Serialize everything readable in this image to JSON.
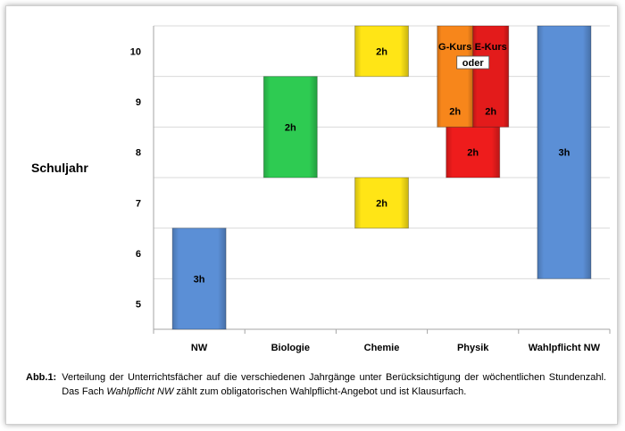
{
  "chart_data": {
    "type": "bar",
    "ylabel": "Schuljahr",
    "yticks": [
      5,
      6,
      7,
      8,
      9,
      10
    ],
    "ylim": [
      4.5,
      10.5
    ],
    "categories": [
      "NW",
      "Biologie",
      "Chemie",
      "Physik",
      "Wahlpflicht NW"
    ],
    "bars": [
      {
        "category": "NW",
        "from": 4.5,
        "to": 6.5,
        "label": "3h",
        "color": "#5b8fd6"
      },
      {
        "category": "Biologie",
        "from": 7.5,
        "to": 9.5,
        "label": "2h",
        "color": "#2ecb52"
      },
      {
        "category": "Chemie",
        "from": 6.5,
        "to": 7.5,
        "label": "2h",
        "color": "#ffe516"
      },
      {
        "category": "Chemie",
        "from": 9.5,
        "to": 10.5,
        "label": "2h",
        "color": "#ffe516"
      },
      {
        "category": "Physik",
        "from": 7.5,
        "to": 8.5,
        "label": "2h",
        "color": "#ee1c1c"
      },
      {
        "category": "Physik",
        "sub": "G-Kurs",
        "from": 8.5,
        "to": 10.5,
        "label": "2h",
        "color": "#f7861b"
      },
      {
        "category": "Physik",
        "sub": "E-Kurs",
        "from": 8.5,
        "to": 10.5,
        "label": "2h",
        "color": "#e31b1b"
      },
      {
        "category": "Wahlpflicht NW",
        "from": 5.5,
        "to": 10.5,
        "label": "3h",
        "color": "#5b8fd6"
      }
    ],
    "annotations": {
      "g_kurs": "G-Kurs",
      "e_kurs": "E-Kurs",
      "oder": "oder"
    }
  },
  "caption": {
    "label": "Abb.1:",
    "text_before": "Verteilung der Unterrichtsfächer auf die verschiedenen Jahrgänge unter Berücksichtigung der wöchentlichen Stundenzahl. Das Fach",
    "italic": "Wahlpflicht NW",
    "text_after": "zählt zum obligatorischen Wahlpflicht-Angebot und ist Klausurfach."
  }
}
